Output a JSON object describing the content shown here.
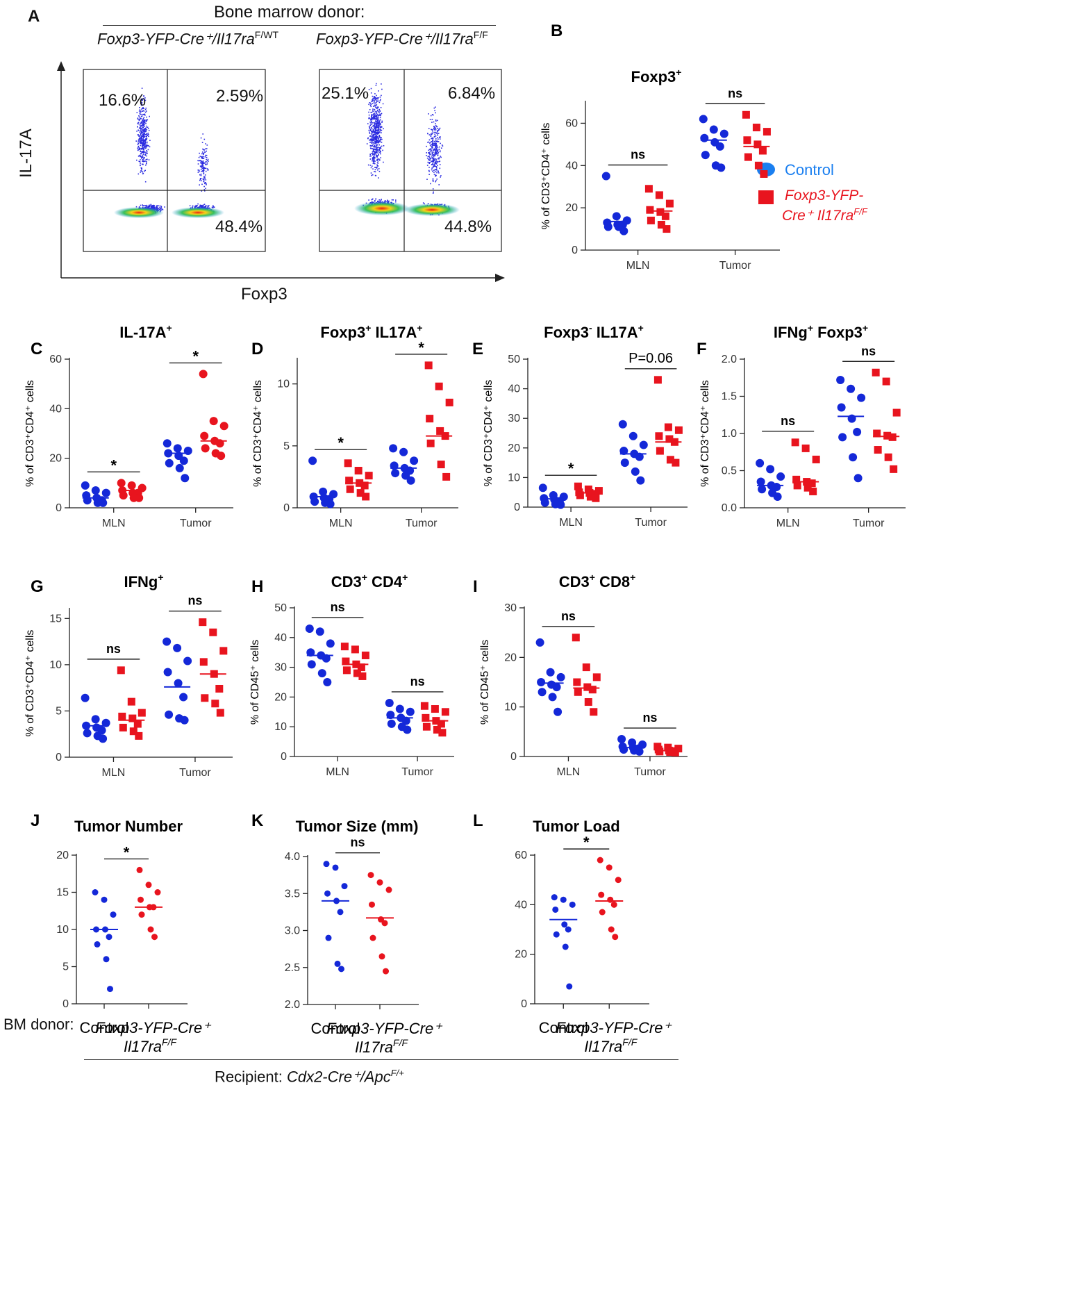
{
  "colors": {
    "control": "#1428d8",
    "treated": "#e8141e",
    "axis": "#222222"
  },
  "legend": {
    "control_label": "Control",
    "treated_label_line1": "Foxp3-YFP-",
    "treated_label_line2": "Cre⁺ Il17ra",
    "treated_label_sup": "F/F"
  },
  "panelA": {
    "letter": "A",
    "title": "Bone marrow donor:",
    "donor1_main": "Foxp3-YFP-Cre⁺/Il17ra",
    "donor1_sup": "F/WT",
    "donor2_main": "Foxp3-YFP-Cre⁺/Il17ra",
    "donor2_sup": "F/F",
    "y_axis_label": "IL-17A",
    "x_axis_label": "Foxp3",
    "plot1": {
      "ul": "16.6%",
      "ur": "2.59%",
      "lr": "48.4%"
    },
    "plot2": {
      "ul": "25.1%",
      "ur": "6.84%",
      "lr": "44.8%"
    }
  },
  "bottom": {
    "bm_donor_label": "BM donor:",
    "recipient_label": "Recipient: ",
    "recipient_main": "Cdx2-Cre⁺/Apc",
    "recipient_sup": "F/+"
  },
  "chart_data": [
    {
      "id": "B",
      "letter": "B",
      "type": "scatter",
      "title": "Foxp3",
      "title_sup": "+",
      "ylabel": "% of CD3⁺CD4⁺ cells",
      "ylim": [
        0,
        70
      ],
      "yticks": [
        0,
        20,
        40,
        60
      ],
      "ytick_labels": [
        "0",
        "20",
        "40",
        "60"
      ],
      "categories": [
        "MLN",
        "Tumor"
      ],
      "marker": "mixed",
      "sig": [
        "ns",
        "ns"
      ],
      "series": [
        {
          "name": "Control",
          "group": "MLN",
          "values": [
            35,
            16,
            14,
            13,
            12,
            12,
            11,
            11,
            9
          ],
          "mean": 13.5
        },
        {
          "name": "Foxp3-YFP-Cre+ Il17raF/F",
          "group": "MLN",
          "values": [
            29,
            26,
            22,
            19,
            18,
            16,
            14,
            12,
            10
          ],
          "mean": 18.5
        },
        {
          "name": "Control",
          "group": "Tumor",
          "values": [
            62,
            57,
            55,
            53,
            51,
            49,
            45,
            40,
            39
          ],
          "mean": 52
        },
        {
          "name": "Foxp3-YFP-Cre+ Il17raF/F",
          "group": "Tumor",
          "values": [
            64,
            58,
            56,
            52,
            50,
            47,
            44,
            40,
            36
          ],
          "mean": 49
        }
      ]
    },
    {
      "id": "C",
      "letter": "C",
      "type": "scatter",
      "title": "IL-17A",
      "title_sup": "+",
      "ylabel": "% of CD3⁺CD4⁺ cells",
      "ylim": [
        0,
        60
      ],
      "yticks": [
        0,
        20,
        40,
        60
      ],
      "ytick_labels": [
        "0",
        "20",
        "40",
        "60"
      ],
      "categories": [
        "MLN",
        "Tumor"
      ],
      "marker": "circle",
      "sig": [
        "*",
        "*"
      ],
      "series": [
        {
          "name": "Control",
          "group": "MLN",
          "values": [
            9,
            7,
            6,
            5,
            4,
            3,
            3,
            2,
            2
          ],
          "mean": 4
        },
        {
          "name": "Foxp3-YFP-Cre+ Il17raF/F",
          "group": "MLN",
          "values": [
            10,
            9,
            8,
            7,
            6,
            6,
            5,
            4,
            4
          ],
          "mean": 7
        },
        {
          "name": "Control",
          "group": "Tumor",
          "values": [
            26,
            24,
            23,
            22,
            21,
            19,
            18,
            16,
            12
          ],
          "mean": 22
        },
        {
          "name": "Foxp3-YFP-Cre+ Il17raF/F",
          "group": "Tumor",
          "values": [
            54,
            35,
            33,
            29,
            27,
            26,
            24,
            22,
            21
          ],
          "mean": 27
        }
      ]
    },
    {
      "id": "D",
      "letter": "D",
      "type": "scatter",
      "title": "Foxp3",
      "title_sup": "+",
      "title_rest": " IL17A",
      "title_sup2": "+",
      "ylabel": "% of CD3⁺CD4⁺ cells",
      "ylim": [
        0,
        12
      ],
      "yticks": [
        0,
        5,
        10
      ],
      "ytick_labels": [
        "0",
        "5",
        "10"
      ],
      "categories": [
        "MLN",
        "Tumor"
      ],
      "marker": "mixed",
      "sig": [
        "*",
        "*"
      ],
      "series": [
        {
          "name": "Control",
          "group": "MLN",
          "values": [
            3.8,
            1.3,
            1.1,
            0.9,
            0.8,
            0.7,
            0.5,
            0.4,
            0.3
          ],
          "mean": 0.9
        },
        {
          "name": "Foxp3-YFP-Cre+ Il17raF/F",
          "group": "MLN",
          "values": [
            3.6,
            3.0,
            2.6,
            2.2,
            2.0,
            1.8,
            1.5,
            1.2,
            0.9
          ],
          "mean": 2.0
        },
        {
          "name": "Control",
          "group": "Tumor",
          "values": [
            4.8,
            4.5,
            3.8,
            3.4,
            3.2,
            3.0,
            2.8,
            2.6,
            2.2
          ],
          "mean": 3.2
        },
        {
          "name": "Foxp3-YFP-Cre+ Il17raF/F",
          "group": "Tumor",
          "values": [
            11.5,
            9.8,
            8.5,
            7.2,
            6.2,
            5.8,
            5.2,
            3.5,
            2.5
          ],
          "mean": 5.8
        }
      ]
    },
    {
      "id": "E",
      "letter": "E",
      "type": "scatter",
      "title": "Foxp3",
      "title_sup": "-",
      "title_rest": " IL17A",
      "title_sup2": "+",
      "ylabel": "% of CD3⁺CD4⁺ cells",
      "ylim": [
        0,
        50
      ],
      "yticks": [
        0,
        10,
        20,
        30,
        40,
        50
      ],
      "ytick_labels": [
        "0",
        "10",
        "20",
        "30",
        "40",
        "50"
      ],
      "categories": [
        "MLN",
        "Tumor"
      ],
      "marker": "mixed",
      "sig": [
        "*",
        "P=0.06"
      ],
      "series": [
        {
          "name": "Control",
          "group": "MLN",
          "values": [
            6.5,
            4,
            3.5,
            3,
            2.5,
            2,
            1.5,
            1,
            0.8
          ],
          "mean": 2.8
        },
        {
          "name": "Foxp3-YFP-Cre+ Il17raF/F",
          "group": "MLN",
          "values": [
            7,
            6,
            5.5,
            5,
            4.8,
            4.5,
            4,
            3.5,
            3
          ],
          "mean": 4.8
        },
        {
          "name": "Control",
          "group": "Tumor",
          "values": [
            28,
            24,
            21,
            19,
            18,
            17,
            15,
            12,
            9
          ],
          "mean": 18
        },
        {
          "name": "Foxp3-YFP-Cre+ Il17raF/F",
          "group": "Tumor",
          "values": [
            43,
            27,
            26,
            24,
            23,
            22,
            19,
            16,
            15
          ],
          "mean": 22
        }
      ]
    },
    {
      "id": "F",
      "letter": "F",
      "type": "scatter",
      "title": "IFNg",
      "title_sup": "+",
      "title_rest": " Foxp3",
      "title_sup2": "+",
      "ylabel": "% of CD3⁺CD4⁺ cells",
      "ylim": [
        0,
        2.0
      ],
      "yticks": [
        0,
        0.5,
        1.0,
        1.5,
        2.0
      ],
      "ytick_labels": [
        "0.0",
        "0.5",
        "1.0",
        "1.5",
        "2.0"
      ],
      "categories": [
        "MLN",
        "Tumor"
      ],
      "marker": "mixed",
      "sig": [
        "ns",
        "ns"
      ],
      "series": [
        {
          "name": "Control",
          "group": "MLN",
          "values": [
            0.6,
            0.52,
            0.42,
            0.35,
            0.3,
            0.28,
            0.25,
            0.2,
            0.15
          ],
          "mean": 0.3
        },
        {
          "name": "Foxp3-YFP-Cre+ Il17raF/F",
          "group": "MLN",
          "values": [
            0.88,
            0.8,
            0.65,
            0.38,
            0.35,
            0.33,
            0.3,
            0.27,
            0.22
          ],
          "mean": 0.35
        },
        {
          "name": "Control",
          "group": "Tumor",
          "values": [
            1.72,
            1.6,
            1.48,
            1.35,
            1.2,
            1.02,
            0.95,
            0.68,
            0.4
          ],
          "mean": 1.23
        },
        {
          "name": "Foxp3-YFP-Cre+ Il17raF/F",
          "group": "Tumor",
          "values": [
            1.82,
            1.7,
            1.28,
            1.0,
            0.97,
            0.95,
            0.78,
            0.68,
            0.52
          ],
          "mean": 0.96
        }
      ]
    },
    {
      "id": "G",
      "letter": "G",
      "type": "scatter",
      "title": "IFNg",
      "title_sup": "+",
      "ylabel": "% of CD3⁺CD4⁺ cells",
      "ylim": [
        0,
        16
      ],
      "yticks": [
        0,
        5,
        10,
        15
      ],
      "ytick_labels": [
        "0",
        "5",
        "10",
        "15"
      ],
      "categories": [
        "MLN",
        "Tumor"
      ],
      "marker": "mixed",
      "sig": [
        "ns",
        "ns"
      ],
      "series": [
        {
          "name": "Control",
          "group": "MLN",
          "values": [
            6.4,
            4.1,
            3.7,
            3.4,
            3.2,
            2.9,
            2.6,
            2.3,
            2.0
          ],
          "mean": 3.4
        },
        {
          "name": "Foxp3-YFP-Cre+ Il17raF/F",
          "group": "MLN",
          "values": [
            9.4,
            6.0,
            4.8,
            4.4,
            4.2,
            3.6,
            3.2,
            2.8,
            2.3
          ],
          "mean": 4.0
        },
        {
          "name": "Control",
          "group": "Tumor",
          "values": [
            12.5,
            11.8,
            10.4,
            9.2,
            8.0,
            6.5,
            4.6,
            4.2,
            4.0
          ],
          "mean": 7.6
        },
        {
          "name": "Foxp3-YFP-Cre+ Il17raF/F",
          "group": "Tumor",
          "values": [
            14.6,
            13.5,
            11.5,
            10.3,
            9.0,
            7.4,
            6.4,
            5.8,
            4.8
          ],
          "mean": 9.0
        }
      ]
    },
    {
      "id": "H",
      "letter": "H",
      "type": "scatter",
      "title": "CD3",
      "title_sup": "+",
      "title_rest": " CD4",
      "title_sup2": "+",
      "ylabel": "% of CD45⁺ cells",
      "ylim": [
        0,
        50
      ],
      "yticks": [
        0,
        10,
        20,
        30,
        40,
        50
      ],
      "ytick_labels": [
        "0",
        "10",
        "20",
        "30",
        "40",
        "50"
      ],
      "categories": [
        "MLN",
        "Tumor"
      ],
      "marker": "mixed",
      "sig": [
        "ns",
        "ns"
      ],
      "series": [
        {
          "name": "Control",
          "group": "MLN",
          "values": [
            43,
            42,
            38,
            35,
            34,
            33,
            31,
            28,
            25
          ],
          "mean": 34
        },
        {
          "name": "Foxp3-YFP-Cre+ Il17raF/F",
          "group": "MLN",
          "values": [
            37,
            36,
            34,
            32,
            31,
            30,
            29,
            28,
            27
          ],
          "mean": 31
        },
        {
          "name": "Control",
          "group": "Tumor",
          "values": [
            18,
            16,
            15,
            14,
            13,
            12,
            11,
            10,
            9
          ],
          "mean": 13
        },
        {
          "name": "Foxp3-YFP-Cre+ Il17raF/F",
          "group": "Tumor",
          "values": [
            17,
            16,
            15,
            13,
            12,
            11,
            10,
            9,
            8
          ],
          "mean": 12
        }
      ]
    },
    {
      "id": "I",
      "letter": "I",
      "type": "scatter",
      "title": "CD3",
      "title_sup": "+",
      "title_rest": " CD8",
      "title_sup2": "+",
      "ylabel": "% of CD45⁺ cells",
      "ylim": [
        0,
        30
      ],
      "yticks": [
        0,
        10,
        20,
        30
      ],
      "ytick_labels": [
        "0",
        "10",
        "20",
        "30"
      ],
      "categories": [
        "MLN",
        "Tumor"
      ],
      "marker": "mixed",
      "sig": [
        "ns",
        "ns"
      ],
      "series": [
        {
          "name": "Control",
          "group": "MLN",
          "values": [
            23,
            17,
            16,
            15,
            14.5,
            14,
            13,
            12,
            9
          ],
          "mean": 14.8
        },
        {
          "name": "Foxp3-YFP-Cre+ Il17raF/F",
          "group": "MLN",
          "values": [
            24,
            18,
            16,
            15,
            14,
            13.5,
            13,
            11,
            9
          ],
          "mean": 13.8
        },
        {
          "name": "Control",
          "group": "Tumor",
          "values": [
            3.5,
            2.8,
            2.4,
            2.0,
            1.8,
            1.6,
            1.4,
            1.2,
            1.0
          ],
          "mean": 1.8
        },
        {
          "name": "Foxp3-YFP-Cre+ Il17raF/F",
          "group": "Tumor",
          "values": [
            2.0,
            1.8,
            1.6,
            1.4,
            1.2,
            1.1,
            1.0,
            0.9,
            0.8
          ],
          "mean": 1.2
        }
      ]
    },
    {
      "id": "J",
      "letter": "J",
      "type": "scatter",
      "title": "Tumor Number",
      "ylabel": "",
      "ylim": [
        0,
        20
      ],
      "yticks": [
        0,
        5,
        10,
        15,
        20
      ],
      "ytick_labels": [
        "0",
        "5",
        "10",
        "15",
        "20"
      ],
      "categories": [
        "Control",
        "Foxp3-YFP-Cre⁺ Il17raF/F"
      ],
      "marker": "circle",
      "sig": [
        "*"
      ],
      "series": [
        {
          "name": "Control",
          "values": [
            15,
            14,
            12,
            10,
            10,
            9,
            8,
            6,
            2
          ],
          "mean": 10
        },
        {
          "name": "Foxp3-YFP-Cre+ Il17raF/F",
          "values": [
            18,
            16,
            15,
            14,
            13,
            13,
            12,
            10,
            9
          ],
          "mean": 13
        }
      ]
    },
    {
      "id": "K",
      "letter": "K",
      "type": "scatter",
      "title": "Tumor Size (mm)",
      "ylabel": "",
      "ylim": [
        2.0,
        4.0
      ],
      "yticks": [
        2.0,
        2.5,
        3.0,
        3.5,
        4.0
      ],
      "ytick_labels": [
        "2.0",
        "2.5",
        "3.0",
        "3.5",
        "4.0"
      ],
      "categories": [
        "Control",
        "Foxp3-YFP-Cre⁺ Il17raF/F"
      ],
      "marker": "circle",
      "sig": [
        "ns"
      ],
      "series": [
        {
          "name": "Control",
          "values": [
            3.9,
            3.85,
            3.6,
            3.5,
            3.4,
            3.25,
            2.9,
            2.55,
            2.48
          ],
          "mean": 3.4
        },
        {
          "name": "Foxp3-YFP-Cre+ Il17raF/F",
          "values": [
            3.75,
            3.65,
            3.55,
            3.35,
            3.15,
            3.1,
            2.9,
            2.65,
            2.45
          ],
          "mean": 3.17
        }
      ]
    },
    {
      "id": "L",
      "letter": "L",
      "type": "scatter",
      "title": "Tumor Load",
      "ylabel": "",
      "ylim": [
        0,
        60
      ],
      "yticks": [
        0,
        20,
        40,
        60
      ],
      "ytick_labels": [
        "0",
        "20",
        "40",
        "60"
      ],
      "categories": [
        "Control",
        "Foxp3-YFP-Cre⁺ Il17raF/F"
      ],
      "marker": "circle",
      "sig": [
        "*"
      ],
      "series": [
        {
          "name": "Control",
          "values": [
            43,
            42,
            40,
            38,
            32,
            30,
            28,
            23,
            7
          ],
          "mean": 34
        },
        {
          "name": "Foxp3-YFP-Cre+ Il17raF/F",
          "values": [
            58,
            55,
            50,
            44,
            42,
            40,
            37,
            30,
            27
          ],
          "mean": 41.5
        }
      ]
    }
  ]
}
